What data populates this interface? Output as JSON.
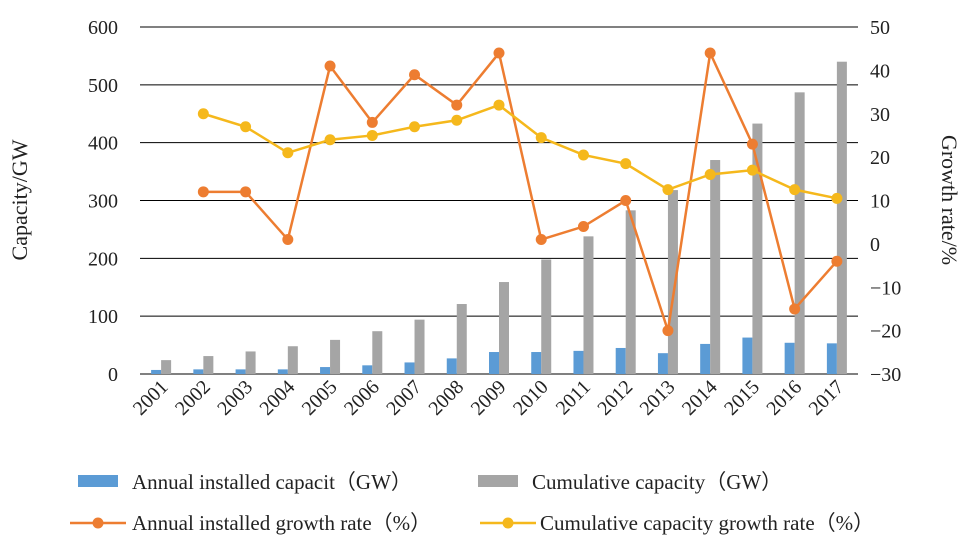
{
  "chart_data": {
    "type": "bar+line",
    "categories": [
      "2001",
      "2002",
      "2003",
      "2004",
      "2005",
      "2006",
      "2007",
      "2008",
      "2009",
      "2010",
      "2011",
      "2012",
      "2013",
      "2014",
      "2015",
      "2016",
      "2017"
    ],
    "bar_series": [
      {
        "name": "Annual installed capacit（GW）",
        "color": "#5b9bd5",
        "values": [
          7,
          8,
          8,
          8,
          12,
          15,
          20,
          27,
          38,
          38,
          40,
          45,
          36,
          52,
          63,
          54,
          53
        ]
      },
      {
        "name": "Cumulative capacity（GW）",
        "color": "#a5a5a5",
        "values": [
          24,
          31,
          39,
          48,
          59,
          74,
          94,
          121,
          159,
          198,
          238,
          283,
          318,
          370,
          433,
          487,
          540
        ]
      }
    ],
    "line_series": [
      {
        "name": "Annual installed growth rate（%）",
        "color": "#ed7d31",
        "values": [
          null,
          12,
          12,
          1,
          41,
          28,
          39,
          32,
          44,
          1,
          4,
          10,
          -20,
          44,
          23,
          -15,
          -4
        ]
      },
      {
        "name": "Cumulative capacity growth rate（%）",
        "color": "#f5b81c",
        "values": [
          null,
          30,
          27,
          21,
          24,
          25,
          27,
          28.5,
          32,
          24.5,
          20.5,
          18.5,
          12.5,
          16,
          17,
          12.5,
          10.5
        ]
      }
    ],
    "y_left": {
      "label": "Capacity/GW",
      "ylim": [
        0,
        600
      ],
      "ticks": [
        "0",
        "100",
        "200",
        "300",
        "400",
        "500",
        "600"
      ]
    },
    "y_right": {
      "label": "Growth rate/%",
      "ylim": [
        -30,
        50
      ],
      "ticks": [
        "−30",
        "−20",
        "−10",
        "0",
        "10",
        "20",
        "30",
        "40",
        "50"
      ]
    },
    "grid": true,
    "legend_position": "bottom"
  }
}
